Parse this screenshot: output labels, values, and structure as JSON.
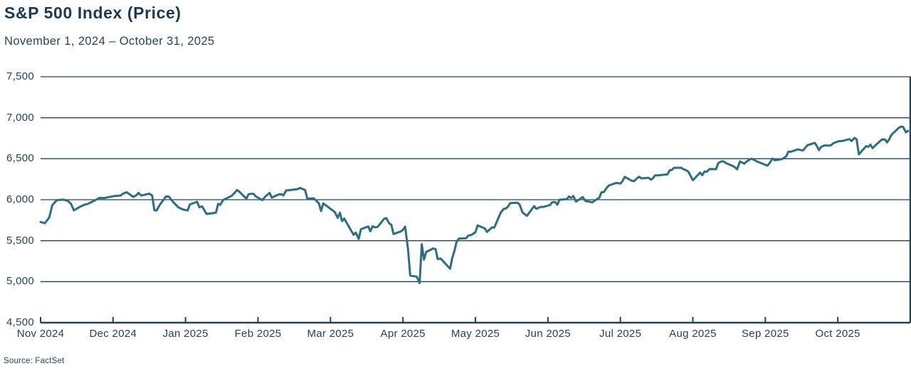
{
  "header": {
    "title": "S&P 500 Index (Price)",
    "subtitle": "November 1, 2024 – October 31, 2025"
  },
  "footer": {
    "source": "Source: FactSet"
  },
  "chart_data": {
    "type": "line",
    "title": "S&P 500 Index (Price)",
    "date_range": "November 1, 2024 – October 31, 2025",
    "source": "Source: FactSet",
    "legend": "none",
    "grid": "horizontal-on",
    "ylim": [
      4500,
      7500
    ],
    "colors": {
      "line": "#2D6F81",
      "grid": "#1F4459",
      "axis": "#1F4459",
      "text": "#22425C",
      "title_text": "#1A3A55",
      "background": "#FFFFFF"
    },
    "y_axis": {
      "ticks": [
        {
          "label": "7,500",
          "value": 7500
        },
        {
          "label": "7,000",
          "value": 7000
        },
        {
          "label": "6,500",
          "value": 6500
        },
        {
          "label": "6,000",
          "value": 6000
        },
        {
          "label": "5,500",
          "value": 5500
        },
        {
          "label": "5,000",
          "value": 5000
        },
        {
          "label": "4,500",
          "value": 4500
        }
      ]
    },
    "x_axis": {
      "unit": "months since 2024-11-01",
      "ticks": [
        {
          "label": "Nov 2024",
          "month": 0
        },
        {
          "label": "Dec 2024",
          "month": 1
        },
        {
          "label": "Jan 2025",
          "month": 2
        },
        {
          "label": "Feb 2025",
          "month": 3
        },
        {
          "label": "Mar 2025",
          "month": 4
        },
        {
          "label": "Apr 2025",
          "month": 5
        },
        {
          "label": "May 2025",
          "month": 6
        },
        {
          "label": "Jun 2025",
          "month": 7
        },
        {
          "label": "Jul 2025",
          "month": 8
        },
        {
          "label": "Aug 2025",
          "month": 9
        },
        {
          "label": "Sep 2025",
          "month": 10
        },
        {
          "label": "Oct 2025",
          "month": 11
        }
      ],
      "boundary_tick_count": 13
    },
    "series": [
      {
        "name": "S&P 500 Index Price",
        "points": [
          [
            0.0,
            5729
          ],
          [
            0.06,
            5713
          ],
          [
            0.12,
            5783
          ],
          [
            0.16,
            5929
          ],
          [
            0.2,
            5973
          ],
          [
            0.23,
            5996
          ],
          [
            0.32,
            6001
          ],
          [
            0.38,
            5984
          ],
          [
            0.42,
            5949
          ],
          [
            0.46,
            5870
          ],
          [
            0.55,
            5917
          ],
          [
            0.61,
            5940
          ],
          [
            0.65,
            5949
          ],
          [
            0.74,
            5987
          ],
          [
            0.81,
            6022
          ],
          [
            0.88,
            6021
          ],
          [
            0.94,
            6032
          ],
          [
            1.03,
            6047
          ],
          [
            1.1,
            6050
          ],
          [
            1.14,
            6075
          ],
          [
            1.17,
            6086
          ],
          [
            1.19,
            6090
          ],
          [
            1.28,
            6035
          ],
          [
            1.32,
            6053
          ],
          [
            1.35,
            6084
          ],
          [
            1.39,
            6051
          ],
          [
            1.5,
            6074
          ],
          [
            1.54,
            6051
          ],
          [
            1.57,
            5872
          ],
          [
            1.6,
            5867
          ],
          [
            1.64,
            5931
          ],
          [
            1.73,
            6040
          ],
          [
            1.77,
            6038
          ],
          [
            1.83,
            5971
          ],
          [
            1.9,
            5907
          ],
          [
            1.96,
            5882
          ],
          [
            2.03,
            5869
          ],
          [
            2.06,
            5943
          ],
          [
            2.16,
            5975
          ],
          [
            2.19,
            5909
          ],
          [
            2.23,
            5918
          ],
          [
            2.29,
            5827
          ],
          [
            2.38,
            5836
          ],
          [
            2.42,
            5843
          ],
          [
            2.45,
            5950
          ],
          [
            2.48,
            5937
          ],
          [
            2.52,
            5997
          ],
          [
            2.64,
            6049
          ],
          [
            2.68,
            6086
          ],
          [
            2.71,
            6119
          ],
          [
            2.74,
            6101
          ],
          [
            2.84,
            6013
          ],
          [
            2.87,
            6068
          ],
          [
            2.9,
            6071
          ],
          [
            2.94,
            6072
          ],
          [
            2.97,
            6041
          ],
          [
            3.06,
            5995
          ],
          [
            3.1,
            6038
          ],
          [
            3.13,
            6061
          ],
          [
            3.16,
            6083
          ],
          [
            3.19,
            6026
          ],
          [
            3.29,
            6066
          ],
          [
            3.32,
            6068
          ],
          [
            3.35,
            6052
          ],
          [
            3.39,
            6115
          ],
          [
            3.42,
            6115
          ],
          [
            3.55,
            6130
          ],
          [
            3.58,
            6144
          ],
          [
            3.65,
            6118
          ],
          [
            3.68,
            6013
          ],
          [
            3.77,
            6017
          ],
          [
            3.81,
            5983
          ],
          [
            3.84,
            5956
          ],
          [
            3.87,
            5862
          ],
          [
            3.9,
            5955
          ],
          [
            4.06,
            5850
          ],
          [
            4.1,
            5778
          ],
          [
            4.13,
            5842
          ],
          [
            4.16,
            5739
          ],
          [
            4.19,
            5770
          ],
          [
            4.29,
            5615
          ],
          [
            4.32,
            5572
          ],
          [
            4.35,
            5599
          ],
          [
            4.39,
            5521
          ],
          [
            4.42,
            5639
          ],
          [
            4.52,
            5675
          ],
          [
            4.55,
            5615
          ],
          [
            4.58,
            5676
          ],
          [
            4.61,
            5663
          ],
          [
            4.65,
            5668
          ],
          [
            4.74,
            5768
          ],
          [
            4.77,
            5776
          ],
          [
            4.81,
            5712
          ],
          [
            4.84,
            5693
          ],
          [
            4.87,
            5581
          ],
          [
            4.97,
            5612
          ],
          [
            5.0,
            5633
          ],
          [
            5.03,
            5671
          ],
          [
            5.07,
            5396
          ],
          [
            5.1,
            5074
          ],
          [
            5.19,
            5062
          ],
          [
            5.23,
            4983
          ],
          [
            5.26,
            5457
          ],
          [
            5.29,
            5268
          ],
          [
            5.32,
            5363
          ],
          [
            5.42,
            5406
          ],
          [
            5.45,
            5397
          ],
          [
            5.48,
            5276
          ],
          [
            5.52,
            5283
          ],
          [
            5.65,
            5158
          ],
          [
            5.68,
            5288
          ],
          [
            5.71,
            5376
          ],
          [
            5.74,
            5485
          ],
          [
            5.77,
            5525
          ],
          [
            5.87,
            5529
          ],
          [
            5.9,
            5561
          ],
          [
            5.94,
            5569
          ],
          [
            6.0,
            5604
          ],
          [
            6.03,
            5687
          ],
          [
            6.13,
            5650
          ],
          [
            6.16,
            5607
          ],
          [
            6.19,
            5631
          ],
          [
            6.23,
            5663
          ],
          [
            6.26,
            5660
          ],
          [
            6.35,
            5844
          ],
          [
            6.39,
            5887
          ],
          [
            6.42,
            5893
          ],
          [
            6.45,
            5917
          ],
          [
            6.48,
            5958
          ],
          [
            6.58,
            5964
          ],
          [
            6.61,
            5940
          ],
          [
            6.65,
            5845
          ],
          [
            6.71,
            5803
          ],
          [
            6.81,
            5922
          ],
          [
            6.84,
            5889
          ],
          [
            6.9,
            5912
          ],
          [
            6.94,
            5912
          ],
          [
            7.03,
            5936
          ],
          [
            7.06,
            5970
          ],
          [
            7.1,
            5971
          ],
          [
            7.13,
            5939
          ],
          [
            7.16,
            6000
          ],
          [
            7.26,
            6006
          ],
          [
            7.29,
            6039
          ],
          [
            7.32,
            6022
          ],
          [
            7.35,
            6045
          ],
          [
            7.39,
            5977
          ],
          [
            7.48,
            6033
          ],
          [
            7.52,
            5983
          ],
          [
            7.55,
            5981
          ],
          [
            7.61,
            5968
          ],
          [
            7.71,
            6025
          ],
          [
            7.74,
            6092
          ],
          [
            7.77,
            6092
          ],
          [
            7.81,
            6141
          ],
          [
            7.84,
            6173
          ],
          [
            7.94,
            6205
          ],
          [
            8.0,
            6198
          ],
          [
            8.03,
            6227
          ],
          [
            8.06,
            6279
          ],
          [
            8.16,
            6230
          ],
          [
            8.19,
            6226
          ],
          [
            8.23,
            6263
          ],
          [
            8.26,
            6280
          ],
          [
            8.29,
            6260
          ],
          [
            8.39,
            6268
          ],
          [
            8.42,
            6244
          ],
          [
            8.45,
            6263
          ],
          [
            8.48,
            6297
          ],
          [
            8.52,
            6297
          ],
          [
            8.61,
            6306
          ],
          [
            8.65,
            6310
          ],
          [
            8.68,
            6359
          ],
          [
            8.71,
            6363
          ],
          [
            8.74,
            6389
          ],
          [
            8.84,
            6390
          ],
          [
            8.87,
            6371
          ],
          [
            8.9,
            6363
          ],
          [
            8.94,
            6339
          ],
          [
            9.0,
            6238
          ],
          [
            9.1,
            6330
          ],
          [
            9.13,
            6299
          ],
          [
            9.16,
            6345
          ],
          [
            9.19,
            6340
          ],
          [
            9.23,
            6374
          ],
          [
            9.32,
            6373
          ],
          [
            9.35,
            6446
          ],
          [
            9.39,
            6467
          ],
          [
            9.42,
            6469
          ],
          [
            9.45,
            6450
          ],
          [
            9.55,
            6412
          ],
          [
            9.58,
            6395
          ],
          [
            9.61,
            6370
          ],
          [
            9.65,
            6467
          ],
          [
            9.71,
            6440
          ],
          [
            9.74,
            6466
          ],
          [
            9.77,
            6481
          ],
          [
            9.81,
            6501
          ],
          [
            9.9,
            6460
          ],
          [
            10.03,
            6415
          ],
          [
            10.06,
            6448
          ],
          [
            10.1,
            6502
          ],
          [
            10.13,
            6481
          ],
          [
            10.23,
            6495
          ],
          [
            10.26,
            6513
          ],
          [
            10.29,
            6532
          ],
          [
            10.32,
            6587
          ],
          [
            10.35,
            6584
          ],
          [
            10.45,
            6615
          ],
          [
            10.48,
            6607
          ],
          [
            10.52,
            6601
          ],
          [
            10.55,
            6632
          ],
          [
            10.58,
            6664
          ],
          [
            10.68,
            6694
          ],
          [
            10.71,
            6656
          ],
          [
            10.74,
            6605
          ],
          [
            10.77,
            6644
          ],
          [
            10.81,
            6661
          ],
          [
            10.9,
            6661
          ],
          [
            10.94,
            6689
          ],
          [
            11.0,
            6711
          ],
          [
            11.03,
            6715
          ],
          [
            11.06,
            6716
          ],
          [
            11.16,
            6740
          ],
          [
            11.19,
            6715
          ],
          [
            11.23,
            6754
          ],
          [
            11.26,
            6735
          ],
          [
            11.29,
            6553
          ],
          [
            11.39,
            6654
          ],
          [
            11.42,
            6645
          ],
          [
            11.45,
            6671
          ],
          [
            11.48,
            6629
          ],
          [
            11.52,
            6664
          ],
          [
            11.61,
            6736
          ],
          [
            11.65,
            6735
          ],
          [
            11.68,
            6699
          ],
          [
            11.71,
            6738
          ],
          [
            11.74,
            6792
          ],
          [
            11.84,
            6876
          ],
          [
            11.87,
            6891
          ],
          [
            11.9,
            6890
          ],
          [
            11.94,
            6822
          ],
          [
            11.97,
            6840
          ]
        ]
      }
    ]
  }
}
